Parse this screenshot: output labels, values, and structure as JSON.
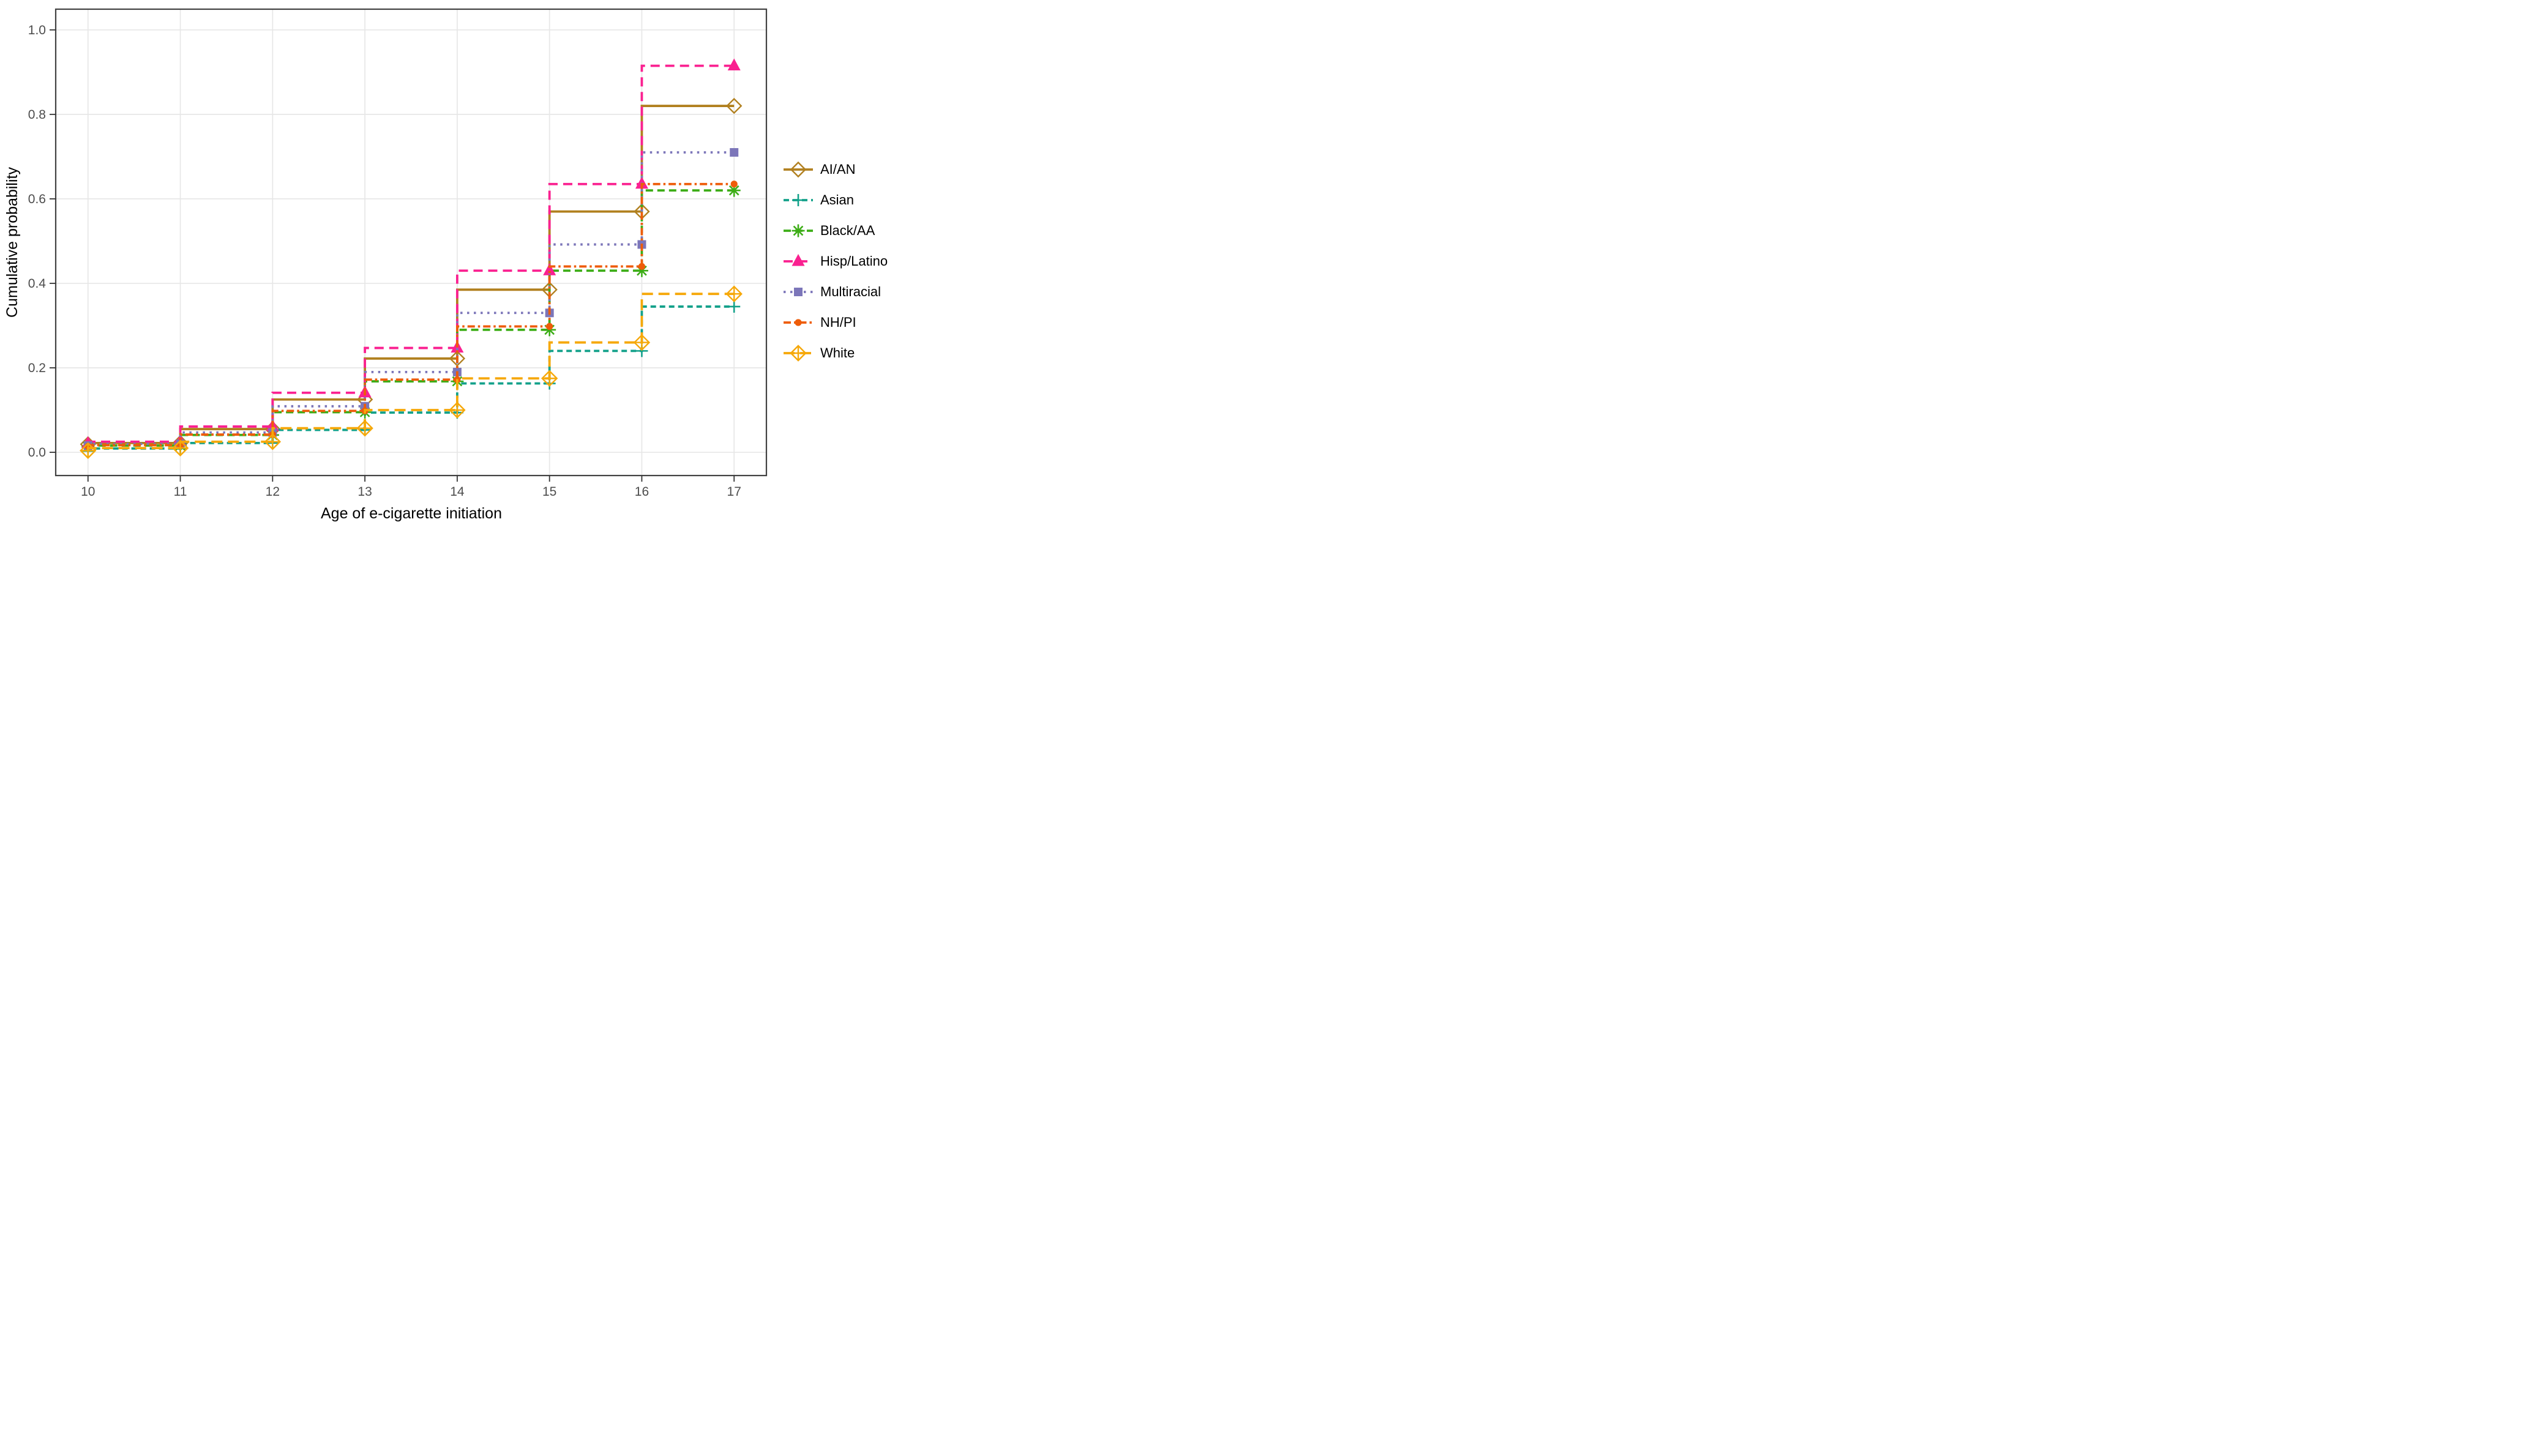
{
  "figure": {
    "background": "#ffffff",
    "panel_border_color": "#424242",
    "gridline_color": "#E7E7E7",
    "tick_color": "#333333",
    "tick_label_color": "#4D4D4D"
  },
  "chart_data": {
    "type": "line",
    "subtype": "step-vh-cumulative-incidence",
    "title": "",
    "xlabel": "Age of e-cigarette initiation",
    "ylabel": "Cumulative probability",
    "x": [
      10,
      11,
      12,
      13,
      14,
      15,
      16,
      17
    ],
    "x_tick_labels": [
      "10",
      "11",
      "12",
      "13",
      "14",
      "15",
      "16",
      "17"
    ],
    "y_ticks": [
      0.0,
      0.2,
      0.4,
      0.6,
      0.8,
      1.0
    ],
    "y_tick_labels": [
      "0.0",
      "0.2",
      "0.4",
      "0.6",
      "0.8",
      "1.0"
    ],
    "xlim": [
      9.65,
      17.35
    ],
    "ylim": [
      -0.055,
      1.049
    ],
    "grid": "major-only",
    "legend_position": "right",
    "series": [
      {
        "name": "AI/AN",
        "color": "#B1801F",
        "dash": "solid",
        "marker": "open-diamond",
        "values": [
          0.019,
          0.022,
          0.055,
          0.125,
          0.222,
          0.385,
          0.57,
          0.82
        ]
      },
      {
        "name": "Asian",
        "color": "#13A18A",
        "dash": "dashed",
        "marker": "plus",
        "values": [
          0.003,
          0.009,
          0.022,
          0.053,
          0.094,
          0.163,
          0.24,
          0.345
        ]
      },
      {
        "name": "Black/AA",
        "color": "#3DAD17",
        "dash": "dashed-md",
        "marker": "asterisk",
        "values": [
          0.013,
          0.016,
          0.041,
          0.095,
          0.168,
          0.29,
          0.43,
          0.62
        ]
      },
      {
        "name": "Hisp/Latino",
        "color": "#FA2090",
        "dash": "dashed-lg",
        "marker": "triangle-filled",
        "values": [
          0.021,
          0.025,
          0.061,
          0.141,
          0.247,
          0.43,
          0.635,
          0.915
        ]
      },
      {
        "name": "Multiracial",
        "color": "#7C76B9",
        "dash": "dotted",
        "marker": "square-filled",
        "values": [
          0.016,
          0.02,
          0.047,
          0.109,
          0.19,
          0.33,
          0.492,
          0.71
        ]
      },
      {
        "name": "NH/PI",
        "color": "#EE5C09",
        "dash": "dash-dot",
        "marker": "circle-filled",
        "values": [
          0.014,
          0.017,
          0.042,
          0.098,
          0.172,
          0.298,
          0.44,
          0.635
        ]
      },
      {
        "name": "White",
        "color": "#F6A809",
        "dash": "long-dash",
        "marker": "diamond-plus",
        "values": [
          0.004,
          0.01,
          0.025,
          0.057,
          0.1,
          0.175,
          0.26,
          0.375
        ]
      }
    ]
  }
}
